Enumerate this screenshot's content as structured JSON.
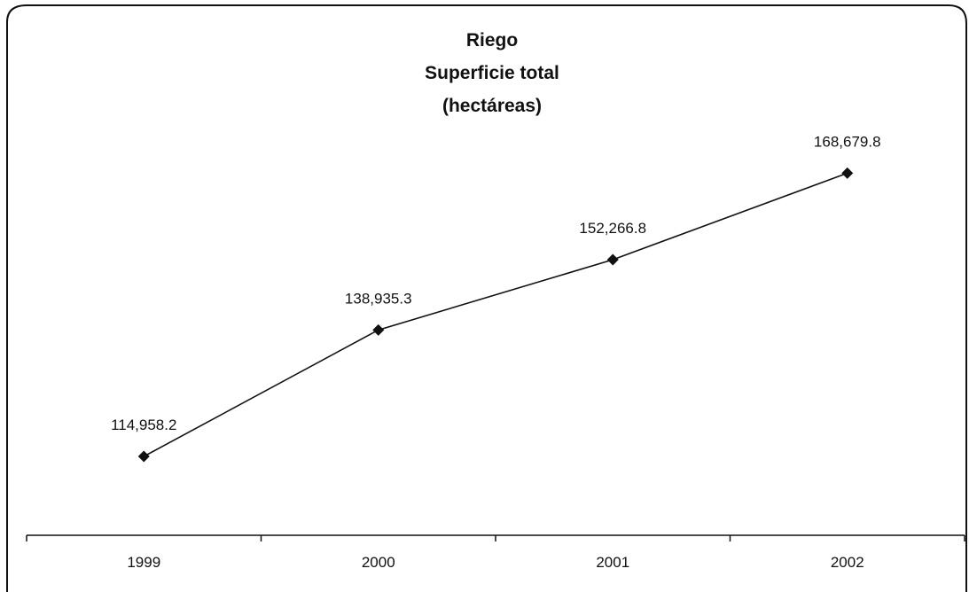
{
  "chart_data": {
    "type": "line",
    "title_lines": [
      "Riego",
      "Superficie total",
      "(hectáreas)"
    ],
    "categories": [
      "1999",
      "2000",
      "2001",
      "2002"
    ],
    "series": [
      {
        "values": [
          114958.2,
          138935.3,
          152266.8,
          168679.8
        ]
      }
    ],
    "data_labels": [
      "114,958.2",
      "138,935.3",
      "152,266.8",
      "168,679.8"
    ],
    "ylim": [
      100000,
      180000
    ],
    "marker": "diamond",
    "grid": false,
    "legend": "none",
    "colors": {
      "line": "#111111",
      "border": "#111111",
      "background": "#ffffff"
    }
  }
}
